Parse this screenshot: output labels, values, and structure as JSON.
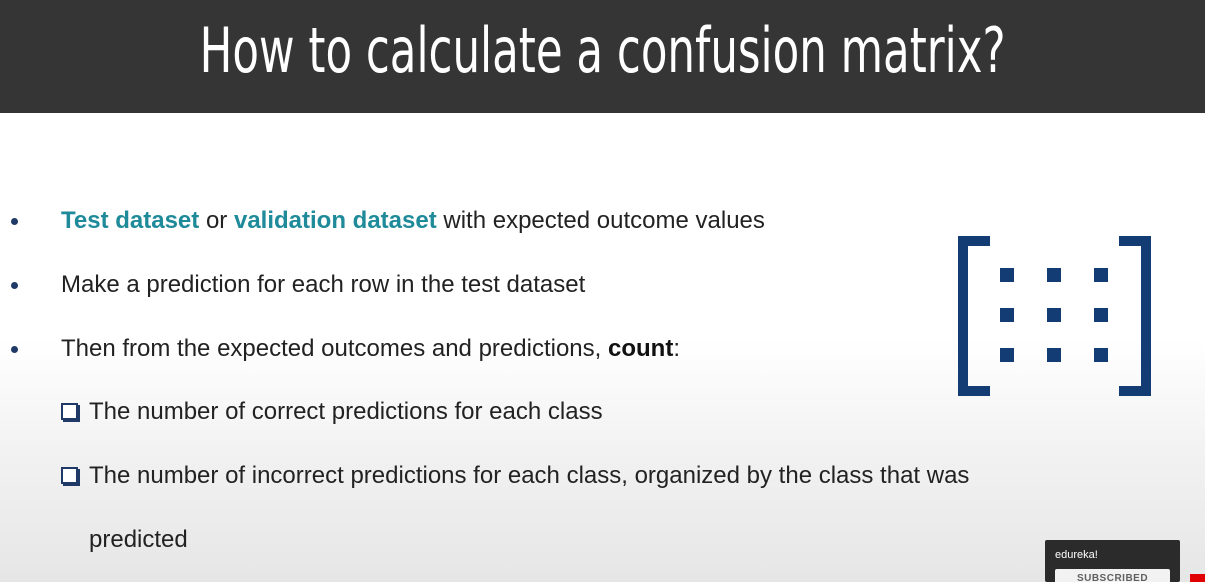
{
  "slide": {
    "title": "How to calculate a confusion matrix?",
    "bullets": [
      {
        "parts": [
          {
            "text": "Test dataset",
            "style": "highlight"
          },
          {
            "text": " or ",
            "style": "normal"
          },
          {
            "text": "validation dataset",
            "style": "highlight"
          },
          {
            "text": " with expected outcome values",
            "style": "normal"
          }
        ]
      },
      {
        "parts": [
          {
            "text": "Make a prediction for each row in the test dataset",
            "style": "normal"
          }
        ]
      },
      {
        "parts": [
          {
            "text": "Then from the expected outcomes and predictions, ",
            "style": "normal"
          },
          {
            "text": "count",
            "style": "bold"
          },
          {
            "text": ":",
            "style": "normal"
          }
        ]
      }
    ],
    "subbullets": [
      "The number of correct predictions for each class",
      "The number of incorrect predictions for each class, organized by the class that was"
    ],
    "subbullet_continuation": "predicted",
    "colors": {
      "header_bg": "#353535",
      "highlight": "#1f8a9a",
      "matrix_icon": "#123c73"
    },
    "icon": "matrix-bracket-icon"
  },
  "overlay": {
    "channel_name": "edureka!",
    "subscribe_label": "SUBSCRIBED"
  }
}
